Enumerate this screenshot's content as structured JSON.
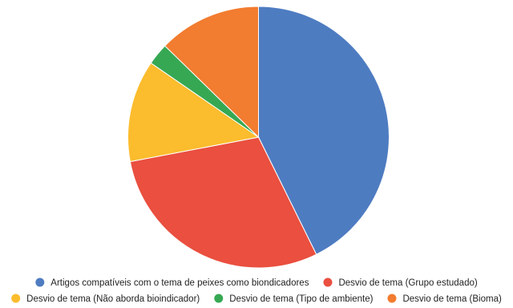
{
  "chart_data": {
    "type": "pie",
    "title": "",
    "labels": [
      "Artigos compatíveis com o tema de peixes como biondicadores",
      "Desvio de tema (Grupo estudado)",
      "Desvio de tema (Não aborda bioindicador)",
      "Desvio de tema (Tipo de ambiente)",
      "Desvio de tema (Bioma)"
    ],
    "values": [
      42.7,
      29.3,
      12.6,
      2.7,
      12.7
    ],
    "colors": [
      "#4e7cc1",
      "#ea4f3f",
      "#fbbc2d",
      "#36a853",
      "#f27c2f"
    ],
    "start_angle": "12 o'clock, clockwise",
    "legend_position": "bottom"
  }
}
